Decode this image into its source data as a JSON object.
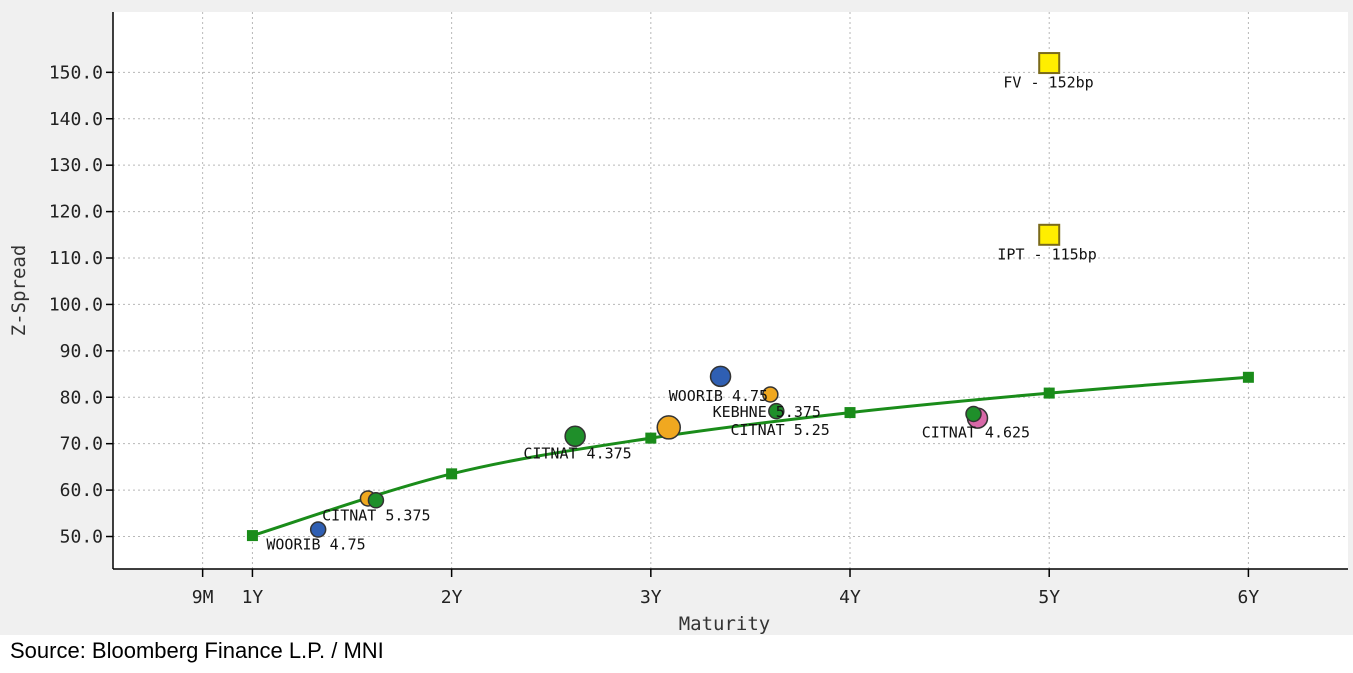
{
  "chart_data": {
    "type": "scatter",
    "title": "",
    "xlabel": "Maturity",
    "ylabel": "Z-Spread",
    "xlim": [
      0.3,
      6.5
    ],
    "ylim": [
      43,
      163
    ],
    "grid": true,
    "x_ticks": [
      {
        "value": 0.75,
        "label": "9M"
      },
      {
        "value": 1,
        "label": "1Y"
      },
      {
        "value": 2,
        "label": "2Y"
      },
      {
        "value": 3,
        "label": "3Y"
      },
      {
        "value": 4,
        "label": "4Y"
      },
      {
        "value": 5,
        "label": "5Y"
      },
      {
        "value": 6,
        "label": "6Y"
      }
    ],
    "y_ticks": [
      {
        "value": 50,
        "label": "50.0"
      },
      {
        "value": 60,
        "label": "60.0"
      },
      {
        "value": 70,
        "label": "70.0"
      },
      {
        "value": 80,
        "label": "80.0"
      },
      {
        "value": 90,
        "label": "90.0"
      },
      {
        "value": 100,
        "label": "100.0"
      },
      {
        "value": 110,
        "label": "110.0"
      },
      {
        "value": 120,
        "label": "120.0"
      },
      {
        "value": 130,
        "label": "130.0"
      },
      {
        "value": 140,
        "label": "140.0"
      },
      {
        "value": 150,
        "label": "150.0"
      }
    ],
    "curve": {
      "name": "fitted curve",
      "color": "#1a8c1a",
      "x": [
        1,
        2,
        3,
        4,
        5,
        6
      ],
      "y": [
        50.2,
        63.5,
        71.2,
        76.7,
        80.9,
        84.3
      ]
    },
    "points": [
      {
        "name": "woorib-short",
        "x": 1.33,
        "y": 51.5,
        "size": "small",
        "color": "#2f5fb3"
      },
      {
        "name": "citnat-5375-orange",
        "x": 1.58,
        "y": 58.2,
        "size": "small",
        "color": "#f0a820"
      },
      {
        "name": "citnat-5375-green",
        "x": 1.62,
        "y": 57.8,
        "size": "small",
        "color": "#1f8f2a"
      },
      {
        "name": "citnat-4375",
        "x": 2.62,
        "y": 71.6,
        "size": "medium",
        "color": "#1f8f2a"
      },
      {
        "name": "orange-3y",
        "x": 3.09,
        "y": 73.5,
        "size": "large",
        "color": "#f0a820"
      },
      {
        "name": "woorib-475",
        "x": 3.35,
        "y": 84.5,
        "size": "medium",
        "color": "#2f5fb3"
      },
      {
        "name": "kebhne-5375",
        "x": 3.6,
        "y": 80.6,
        "size": "small",
        "color": "#f0a820"
      },
      {
        "name": "citnat-525",
        "x": 3.63,
        "y": 77.0,
        "size": "small",
        "color": "#1f8f2a"
      },
      {
        "name": "pink-4625",
        "x": 4.64,
        "y": 75.5,
        "size": "medium",
        "color": "#d868a8"
      },
      {
        "name": "citnat-4625",
        "x": 4.62,
        "y": 76.4,
        "size": "small",
        "color": "#1f8f2a"
      }
    ],
    "squares": [
      {
        "name": "fv",
        "x": 5,
        "y": 152,
        "color": "#ffee00"
      },
      {
        "name": "ipt",
        "x": 5,
        "y": 115,
        "color": "#ffee00"
      }
    ],
    "annotations": [
      {
        "text": "WOORIB 4.75",
        "x": 1.07,
        "y": 47.2
      },
      {
        "text": "CITNAT 5.375",
        "x": 1.35,
        "y": 53.4
      },
      {
        "text": "CITNAT 4.375",
        "x": 2.36,
        "y": 66.8
      },
      {
        "text": "WOORIB 4.75",
        "x": 3.09,
        "y": 79.2
      },
      {
        "text": "KEBHNE 5.375",
        "x": 3.31,
        "y": 75.7
      },
      {
        "text": "CITNAT 5.25",
        "x": 3.4,
        "y": 71.9
      },
      {
        "text": "CITNAT 4.625",
        "x": 4.36,
        "y": 71.3
      },
      {
        "text": "FV - 152bp",
        "x": 4.77,
        "y": 146.7
      },
      {
        "text": "IPT - 115bp",
        "x": 4.74,
        "y": 109.7
      }
    ]
  },
  "source_note": "Source: Bloomberg Finance L.P. / MNI"
}
